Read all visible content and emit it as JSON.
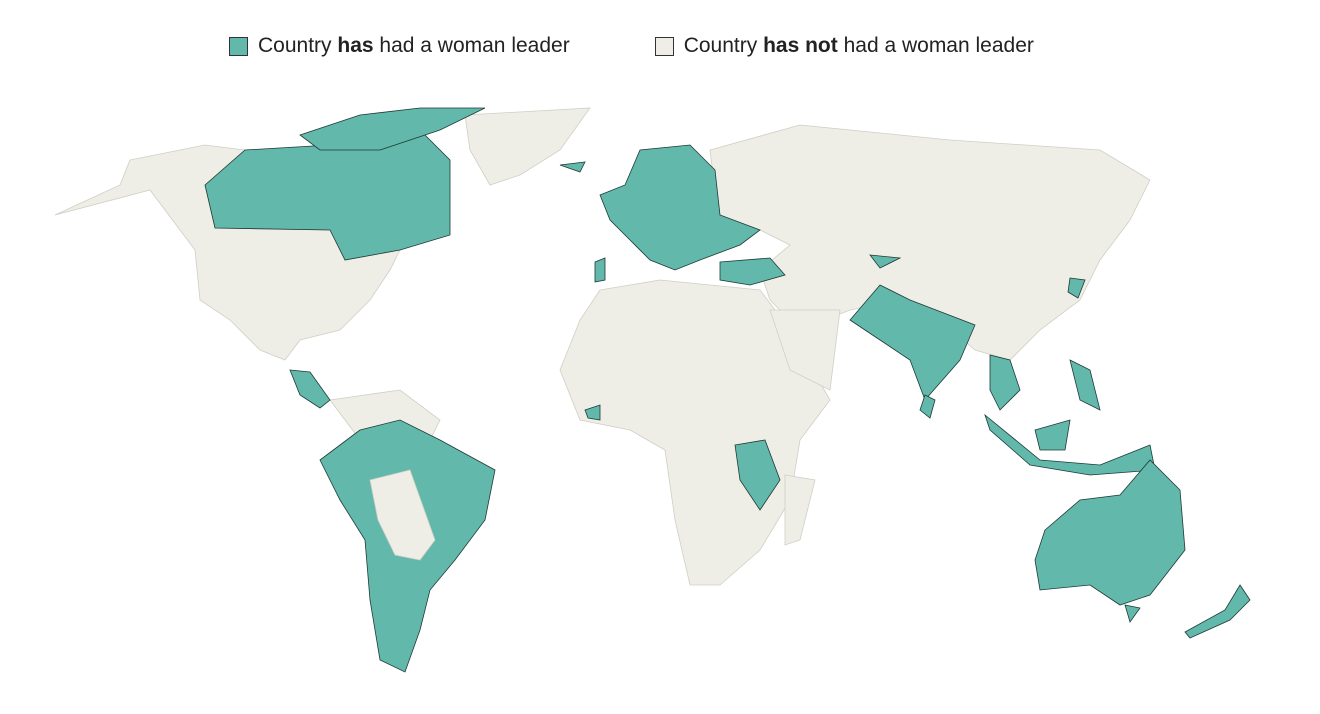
{
  "legend": {
    "items": [
      {
        "parts": [
          {
            "text": "Country ",
            "bold": false
          },
          {
            "text": "has",
            "bold": true
          },
          {
            "text": " had a woman leader",
            "bold": false
          }
        ],
        "color": "#62b8aa"
      },
      {
        "parts": [
          {
            "text": "Country ",
            "bold": false
          },
          {
            "text": "has not",
            "bold": true
          },
          {
            "text": " had a woman leader",
            "bold": false
          }
        ],
        "color": "#efeee6"
      }
    ]
  }
}
